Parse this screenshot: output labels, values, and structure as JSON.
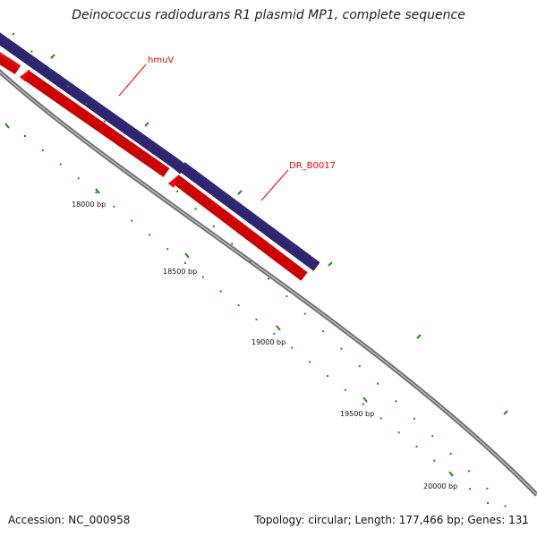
{
  "header": {
    "title": "Deinococcus radiodurans R1 plasmid MP1, complete sequence"
  },
  "footer": {
    "accession": "Accession: NC_000958",
    "summary": "Topology: circular; Length: 177,466 bp; Genes: 131"
  },
  "genes": [
    {
      "label": "hmuV",
      "strand": "reverse",
      "color": "#ff0000"
    },
    {
      "label": "DR_B0017",
      "strand": "reverse",
      "color": "#ff0000"
    }
  ],
  "scale_ticks": [
    "18000 bp",
    "18500 bp",
    "19000 bp",
    "19500 bp",
    "20000 bp"
  ],
  "colors": {
    "forward_feature": "#4b3f9a",
    "reverse_feature": "#ff0000",
    "backbone": "#808080",
    "tick": "#1f8a1f",
    "label_line": "#ff0000"
  }
}
